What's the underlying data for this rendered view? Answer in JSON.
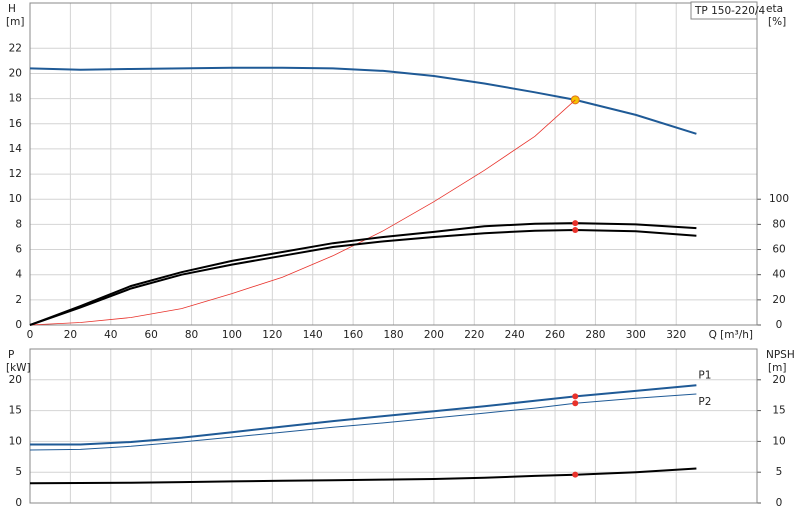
{
  "chart_data": [
    {
      "type": "line",
      "title": "TP 150-220/4",
      "ylabel": "H",
      "yunit": "[m]",
      "y2label": "eta",
      "y2unit": "[%]",
      "xlabel": "Q [m³/h]",
      "xlim": [
        0,
        360
      ],
      "xticks": [
        0,
        20,
        40,
        60,
        80,
        100,
        120,
        140,
        160,
        180,
        200,
        220,
        240,
        260,
        280,
        300,
        320
      ],
      "ylim": [
        0,
        25.6
      ],
      "yticks": [
        0,
        2,
        4,
        6,
        8,
        10,
        12,
        14,
        16,
        18,
        20,
        22
      ],
      "y2lim": [
        0,
        256
      ],
      "y2ticks": [
        0,
        20,
        40,
        60,
        80,
        100
      ],
      "grid": true,
      "xtick_labels": true,
      "duty_q": 270,
      "x": [
        0,
        25,
        50,
        75,
        100,
        125,
        150,
        175,
        200,
        225,
        250,
        270,
        300,
        330
      ],
      "series": [
        {
          "color": "#1f5a96",
          "width": 2,
          "values": [
            20.4,
            20.3,
            20.35,
            20.4,
            20.45,
            20.45,
            20.4,
            20.2,
            19.8,
            19.2,
            18.5,
            17.9,
            16.7,
            15.2
          ],
          "duty_color": "#f5c400",
          "duty_stroke": "#e07020"
        },
        {
          "color": "#e8322b",
          "width": 0.8,
          "values": [
            0,
            0.2,
            0.6,
            1.3,
            2.5,
            3.8,
            5.5,
            7.5,
            9.8,
            12.3,
            15.0,
            17.9,
            null,
            null
          ]
        },
        {
          "color": "#000000",
          "width": 2,
          "axis": "y2",
          "values": [
            0,
            15,
            31,
            42,
            51,
            58,
            65,
            70,
            74,
            78.5,
            80.5,
            81,
            80,
            77
          ],
          "duty_color": "#e8322b"
        },
        {
          "color": "#000000",
          "width": 2,
          "axis": "y2",
          "values": [
            0,
            14,
            29,
            40,
            48,
            55,
            62,
            66.5,
            70,
            73,
            75,
            75.5,
            74.5,
            71
          ],
          "duty_color": "#e8322b"
        }
      ]
    },
    {
      "type": "line",
      "ylabel": "P",
      "yunit": "[kW]",
      "y2label": "NPSH",
      "y2unit": "[m]",
      "xlim": [
        0,
        360
      ],
      "xticks": [
        0,
        20,
        40,
        60,
        80,
        100,
        120,
        140,
        160,
        180,
        200,
        220,
        240,
        260,
        280,
        300,
        320
      ],
      "ylim": [
        0,
        25
      ],
      "yticks": [
        0,
        5,
        10,
        15,
        20
      ],
      "y2lim": [
        0,
        25
      ],
      "y2ticks": [
        0,
        5,
        10,
        15,
        20
      ],
      "grid": true,
      "xtick_labels": false,
      "duty_q": 270,
      "x": [
        0,
        25,
        50,
        75,
        100,
        125,
        150,
        175,
        200,
        225,
        250,
        270,
        300,
        330
      ],
      "series": [
        {
          "name": "P1",
          "color": "#1f5a96",
          "width": 2,
          "values": [
            9.5,
            9.5,
            9.9,
            10.6,
            11.5,
            12.4,
            13.3,
            14.1,
            14.9,
            15.7,
            16.6,
            17.3,
            18.2,
            19.1
          ],
          "duty_color": "#e8322b"
        },
        {
          "name": "P2",
          "color": "#1f5a96",
          "width": 1,
          "values": [
            8.6,
            8.7,
            9.2,
            9.9,
            10.7,
            11.5,
            12.3,
            13.0,
            13.8,
            14.6,
            15.4,
            16.2,
            17.0,
            17.7
          ],
          "duty_color": "#e8322b"
        },
        {
          "color": "#000000",
          "width": 2,
          "axis": "y2",
          "values": [
            3.2,
            3.25,
            3.3,
            3.4,
            3.5,
            3.6,
            3.7,
            3.8,
            3.9,
            4.1,
            4.4,
            4.6,
            5.0,
            5.6
          ],
          "duty_color": "#e8322b"
        }
      ]
    }
  ]
}
